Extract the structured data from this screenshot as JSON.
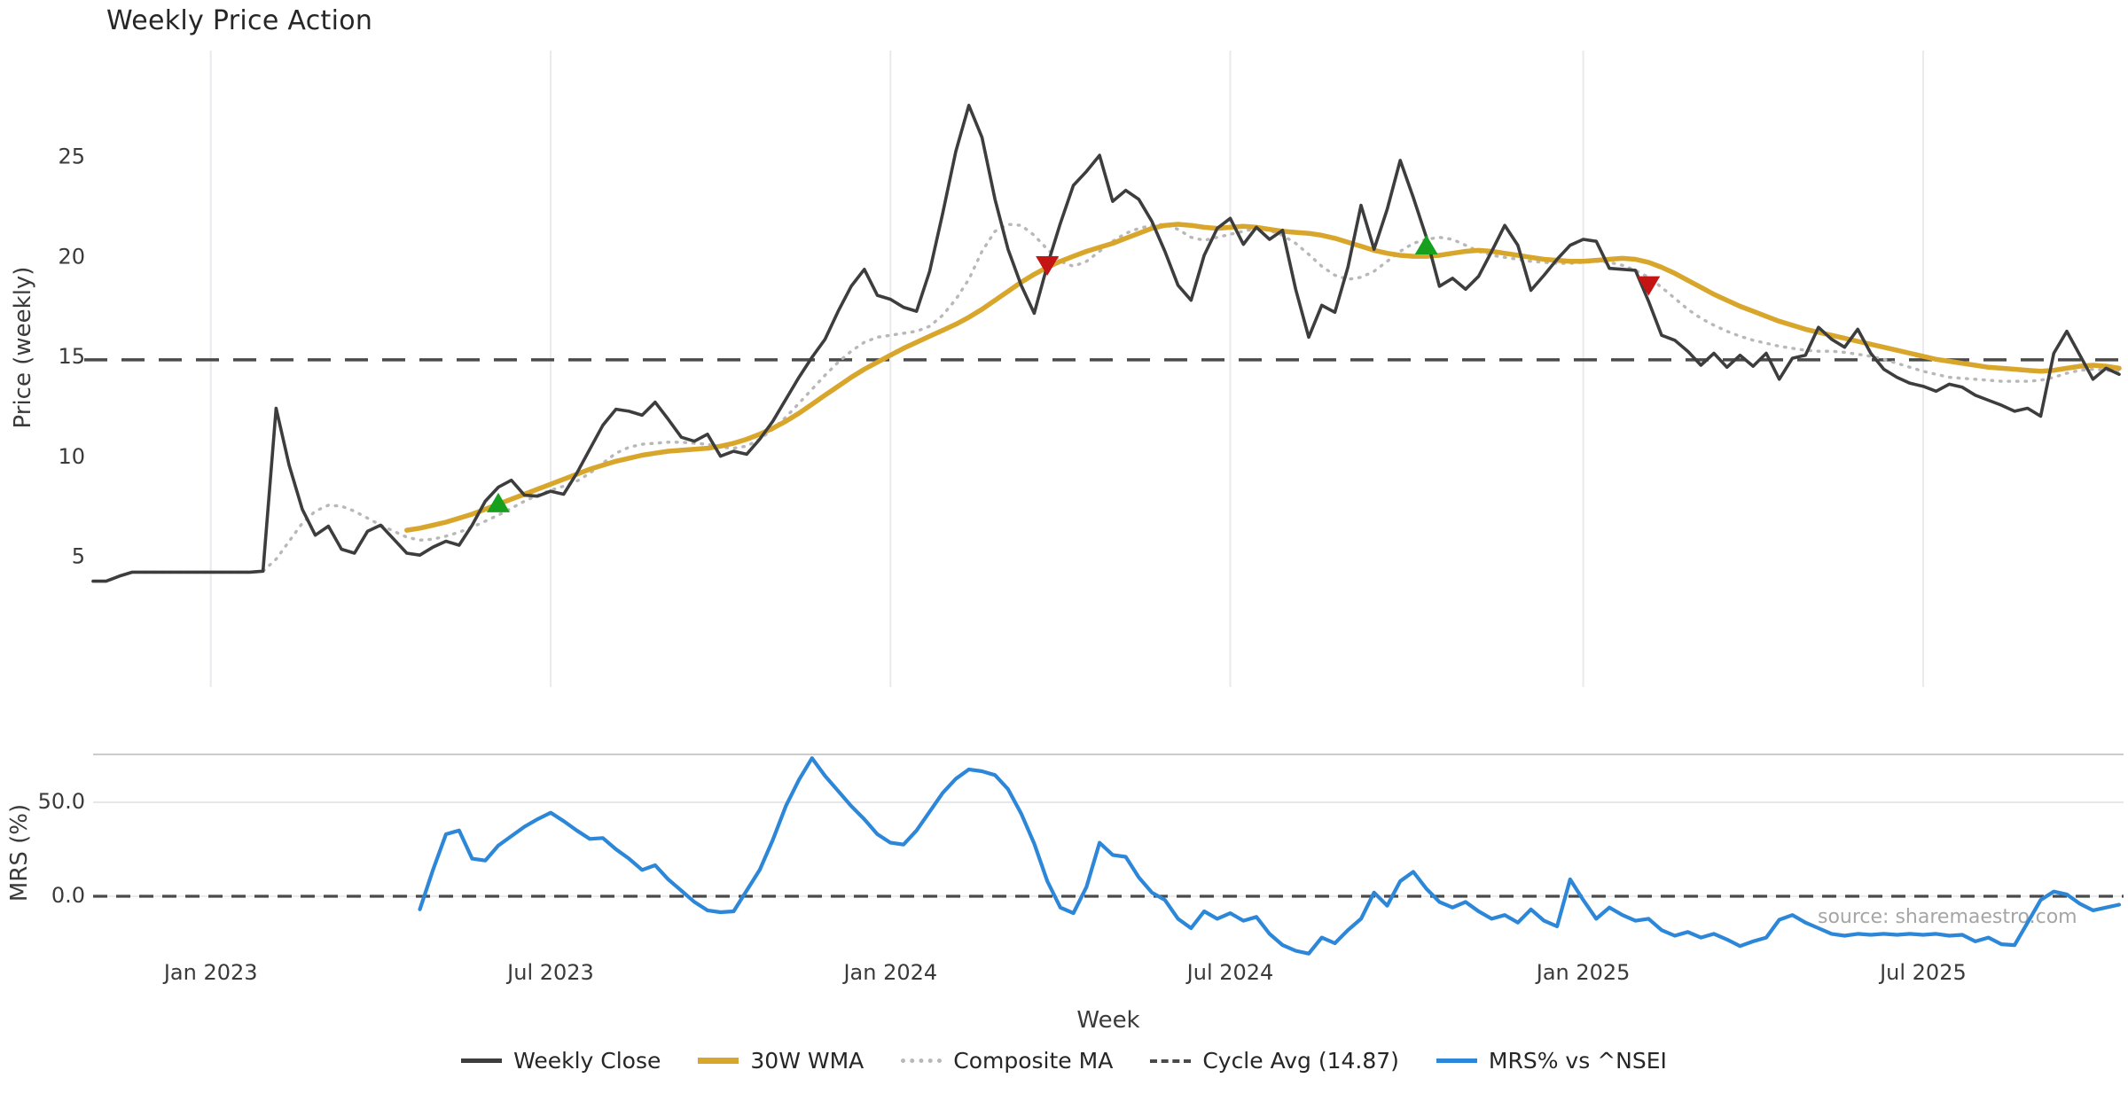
{
  "title": "Weekly Price Action",
  "watermark": "source: sharemaestro.com",
  "xlabel": "Week",
  "colors": {
    "close": "#3d3d3d",
    "wma": "#d9a62c",
    "composite": "#b8b8b8",
    "cycle": "#4a4a4a",
    "mrs": "#2d87d8",
    "buy_marker": "#17a01e",
    "sell_marker": "#c41414",
    "gridline": "#e9e9ee",
    "spine": "#cccccc",
    "tick_text": "#3a3a3a"
  },
  "legend": [
    {
      "label": "Weekly Close",
      "color": "#3d3d3d",
      "style": "solid"
    },
    {
      "label": "30W WMA",
      "color": "#d9a62c",
      "style": "thick"
    },
    {
      "label": "Composite MA",
      "color": "#b8b8b8",
      "style": "dotted"
    },
    {
      "label": "Cycle Avg (14.87)",
      "color": "#4a4a4a",
      "style": "dashed"
    },
    {
      "label": "MRS% vs ^NSEI",
      "color": "#2d87d8",
      "style": "solid"
    }
  ],
  "chart_data": [
    {
      "type": "line",
      "panel": "price",
      "title": "Weekly Price Action",
      "ylabel": "Price (weekly)",
      "yticks": [
        5,
        10,
        15,
        20,
        25
      ],
      "ylim": [
        -1.5,
        30.4
      ],
      "grid": "vertical-only",
      "cycle_avg": 14.87,
      "x_tick_labels": [
        "Jan 2023",
        "Jul 2023",
        "Jan 2024",
        "Jul 2024",
        "Jan 2025",
        "Jul 2025"
      ],
      "x_tick_week_indices": [
        9,
        35,
        61,
        87,
        114,
        140
      ],
      "x_start_week": "2022-10-31",
      "weeks_total": 156,
      "series": [
        {
          "name": "Weekly Close",
          "values": [
            3.8,
            3.8,
            4.05,
            4.25,
            4.25,
            4.25,
            4.25,
            4.25,
            4.25,
            4.25,
            4.25,
            4.25,
            4.25,
            4.3,
            12.45,
            9.6,
            7.4,
            6.1,
            6.55,
            5.4,
            5.2,
            6.3,
            6.6,
            5.9,
            5.2,
            5.1,
            5.5,
            5.8,
            5.6,
            6.6,
            7.8,
            8.5,
            8.85,
            8.1,
            8.05,
            8.3,
            8.15,
            9.2,
            10.4,
            11.6,
            12.4,
            12.3,
            12.1,
            12.75,
            11.9,
            11.0,
            10.8,
            11.15,
            10.05,
            10.3,
            10.15,
            10.9,
            11.8,
            12.9,
            14.0,
            15.0,
            15.9,
            17.3,
            18.55,
            19.4,
            18.1,
            17.9,
            17.5,
            17.3,
            19.3,
            22.2,
            25.3,
            27.6,
            26.0,
            22.9,
            20.4,
            18.6,
            17.2,
            19.6,
            21.7,
            23.6,
            24.3,
            25.1,
            22.8,
            23.35,
            22.9,
            21.8,
            20.3,
            18.6,
            17.85,
            20.1,
            21.45,
            21.95,
            20.65,
            21.5,
            20.9,
            21.35,
            18.4,
            16.0,
            17.6,
            17.25,
            19.5,
            22.6,
            20.4,
            22.4,
            24.85,
            23.0,
            21.0,
            18.55,
            18.95,
            18.4,
            19.05,
            20.3,
            21.6,
            20.6,
            18.35,
            19.1,
            19.9,
            20.6,
            20.9,
            20.8,
            19.45,
            19.4,
            19.35,
            17.8,
            16.1,
            15.85,
            15.3,
            14.6,
            15.2,
            14.5,
            15.1,
            14.55,
            15.2,
            13.9,
            14.95,
            15.1,
            16.5,
            15.9,
            15.5,
            16.4,
            15.2,
            14.4,
            14.0,
            13.7,
            13.55,
            13.3,
            13.65,
            13.5,
            13.1,
            12.85,
            12.6,
            12.3,
            12.45,
            12.05,
            15.2,
            16.3,
            15.1,
            13.9,
            14.45,
            14.15
          ]
        },
        {
          "name": "30W WMA",
          "values": [
            null,
            null,
            null,
            null,
            null,
            null,
            null,
            null,
            null,
            null,
            null,
            null,
            null,
            null,
            null,
            null,
            null,
            null,
            null,
            null,
            null,
            null,
            null,
            null,
            6.35,
            6.45,
            6.6,
            6.75,
            6.95,
            7.15,
            7.4,
            7.65,
            7.9,
            8.15,
            8.4,
            8.65,
            8.9,
            9.15,
            9.4,
            9.6,
            9.8,
            9.95,
            10.1,
            10.2,
            10.3,
            10.35,
            10.4,
            10.45,
            10.55,
            10.7,
            10.9,
            11.15,
            11.45,
            11.8,
            12.2,
            12.65,
            13.1,
            13.55,
            14.0,
            14.4,
            14.75,
            15.1,
            15.45,
            15.75,
            16.05,
            16.35,
            16.65,
            17.0,
            17.4,
            17.85,
            18.3,
            18.75,
            19.15,
            19.5,
            19.8,
            20.05,
            20.3,
            20.5,
            20.7,
            20.95,
            21.2,
            21.45,
            21.6,
            21.65,
            21.6,
            21.5,
            21.45,
            21.5,
            21.55,
            21.5,
            21.4,
            21.3,
            21.25,
            21.2,
            21.1,
            20.95,
            20.75,
            20.55,
            20.35,
            20.2,
            20.1,
            20.05,
            20.05,
            20.1,
            20.2,
            20.3,
            20.35,
            20.3,
            20.2,
            20.1,
            20.0,
            19.9,
            19.85,
            19.8,
            19.8,
            19.85,
            19.9,
            19.95,
            19.9,
            19.75,
            19.5,
            19.2,
            18.85,
            18.5,
            18.15,
            17.85,
            17.55,
            17.3,
            17.05,
            16.8,
            16.6,
            16.4,
            16.25,
            16.1,
            15.95,
            15.8,
            15.65,
            15.5,
            15.35,
            15.2,
            15.05,
            14.9,
            14.8,
            14.7,
            14.6,
            14.5,
            14.45,
            14.4,
            14.35,
            14.3,
            14.35,
            14.45,
            14.55,
            14.6,
            14.55,
            14.45
          ]
        },
        {
          "name": "Composite MA",
          "values": [
            null,
            null,
            null,
            null,
            4.25,
            4.25,
            4.25,
            4.25,
            4.25,
            4.25,
            4.25,
            4.25,
            4.25,
            4.3,
            4.9,
            5.8,
            6.7,
            7.3,
            7.6,
            7.55,
            7.3,
            6.95,
            6.6,
            6.3,
            6.0,
            5.85,
            5.9,
            6.05,
            6.25,
            6.5,
            6.8,
            7.1,
            7.45,
            7.8,
            8.1,
            8.35,
            8.55,
            8.8,
            9.2,
            9.7,
            10.2,
            10.5,
            10.65,
            10.7,
            10.75,
            10.75,
            10.7,
            10.65,
            10.5,
            10.45,
            10.55,
            10.9,
            11.4,
            12.0,
            12.7,
            13.4,
            14.1,
            14.75,
            15.3,
            15.75,
            16.0,
            16.1,
            16.2,
            16.3,
            16.55,
            17.1,
            17.9,
            18.9,
            20.3,
            21.3,
            21.65,
            21.6,
            21.1,
            20.4,
            19.8,
            19.55,
            19.8,
            20.3,
            20.8,
            21.2,
            21.45,
            21.6,
            21.65,
            21.4,
            21.0,
            20.85,
            21.0,
            21.15,
            21.3,
            21.45,
            21.35,
            21.1,
            20.7,
            20.15,
            19.55,
            19.1,
            18.9,
            19.0,
            19.3,
            19.8,
            20.3,
            20.7,
            20.9,
            21.0,
            20.9,
            20.6,
            20.3,
            20.1,
            20.0,
            19.9,
            19.8,
            19.75,
            19.7,
            19.7,
            19.75,
            19.8,
            19.75,
            19.6,
            19.35,
            19.0,
            18.5,
            17.95,
            17.4,
            16.95,
            16.6,
            16.3,
            16.05,
            15.85,
            15.7,
            15.55,
            15.45,
            15.35,
            15.3,
            15.3,
            15.25,
            15.15,
            15.05,
            14.9,
            14.7,
            14.5,
            14.3,
            14.15,
            14.0,
            13.95,
            13.9,
            13.85,
            13.8,
            13.8,
            13.8,
            13.85,
            14.0,
            14.2,
            14.35,
            14.4,
            14.35,
            14.3
          ]
        }
      ],
      "markers": [
        {
          "type": "buy",
          "week_index": 31,
          "price": 7.6
        },
        {
          "type": "sell",
          "week_index": 73,
          "price": 19.7
        },
        {
          "type": "buy",
          "week_index": 102,
          "price": 20.5
        },
        {
          "type": "sell",
          "week_index": 119,
          "price": 18.7
        }
      ]
    },
    {
      "type": "line",
      "panel": "mrs",
      "ylabel": "MRS (%)",
      "ytick_labels": [
        "0.0",
        "50.0"
      ],
      "yticks": [
        0,
        50
      ],
      "ylim": [
        -31,
        76
      ],
      "zero_line_dashed": true,
      "series": [
        {
          "name": "MRS% vs ^NSEI",
          "values": [
            null,
            null,
            null,
            null,
            null,
            null,
            null,
            null,
            null,
            null,
            null,
            null,
            null,
            null,
            null,
            null,
            null,
            null,
            null,
            null,
            null,
            null,
            null,
            null,
            null,
            -7,
            14,
            33,
            35,
            20,
            19,
            27,
            32,
            37,
            41,
            44.5,
            40,
            35,
            30.5,
            31,
            25,
            20,
            14,
            16.5,
            9,
            3,
            -3,
            -7.5,
            -8.5,
            -8,
            3,
            14,
            30,
            48,
            62,
            73.5,
            64,
            56,
            48,
            41,
            33,
            28.5,
            27.5,
            35,
            45,
            55,
            62.5,
            67.5,
            66.5,
            64.5,
            57,
            44,
            28,
            8,
            -6,
            -9,
            5,
            28.5,
            22,
            21,
            10,
            2,
            -2,
            -12,
            -17,
            -8,
            -12,
            -9,
            -13,
            -11,
            -20,
            -26,
            -29,
            -30.5,
            -22,
            -25,
            -18,
            -12,
            2,
            -5,
            8,
            13,
            4,
            -3,
            -6,
            -3,
            -8,
            -12,
            -10,
            -14,
            -7,
            -13,
            -16,
            9,
            -2,
            -12,
            -6,
            -10,
            -13,
            -12,
            -18,
            -21,
            -19,
            -22,
            -20,
            -23,
            -26.5,
            -24,
            -22,
            -12.5,
            -10,
            -14,
            -17,
            -20,
            -21,
            -20,
            -20.5,
            -20,
            -20.5,
            -20,
            -20.5,
            -20,
            -21,
            -20.5,
            -24,
            -22,
            -25.5,
            -26,
            -14,
            -2,
            2.5,
            1,
            -4,
            -7.5,
            -6,
            -4.5
          ]
        }
      ]
    }
  ]
}
